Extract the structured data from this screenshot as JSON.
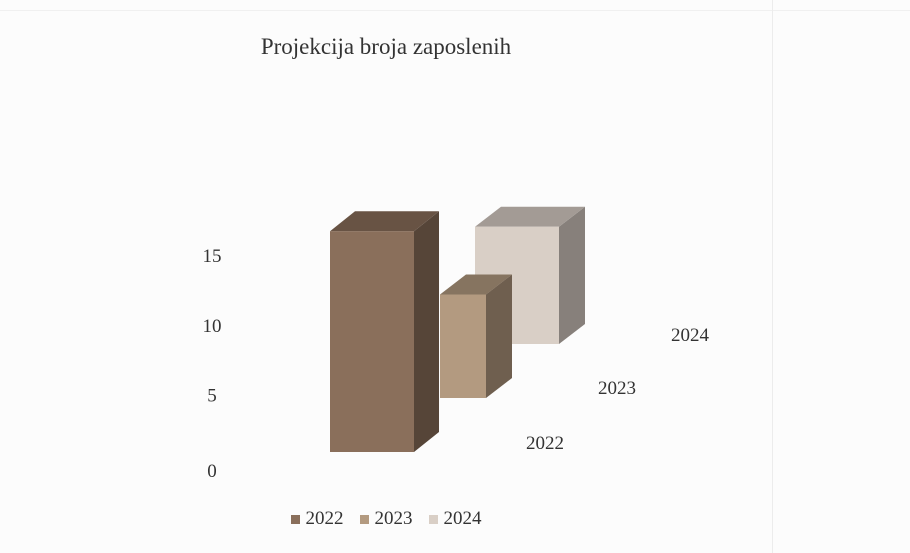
{
  "chart_data": {
    "type": "bar",
    "title": "Projekcija broja zaposlenih",
    "categories": [
      "2022",
      "2023",
      "2024"
    ],
    "values": [
      16,
      7.5,
      8.5
    ],
    "ylim": [
      0,
      15
    ],
    "y_ticks": [
      "0",
      "5",
      "10",
      "15"
    ],
    "xlabel": "",
    "ylabel": "",
    "grid": false,
    "legend": "bottom",
    "series": [
      {
        "name": "2022",
        "value": 16,
        "color": "#8a6f5b"
      },
      {
        "name": "2023",
        "value": 7.5,
        "color": "#b39a80"
      },
      {
        "name": "2024",
        "value": 8.5,
        "color": "#d9cfc6"
      }
    ]
  }
}
